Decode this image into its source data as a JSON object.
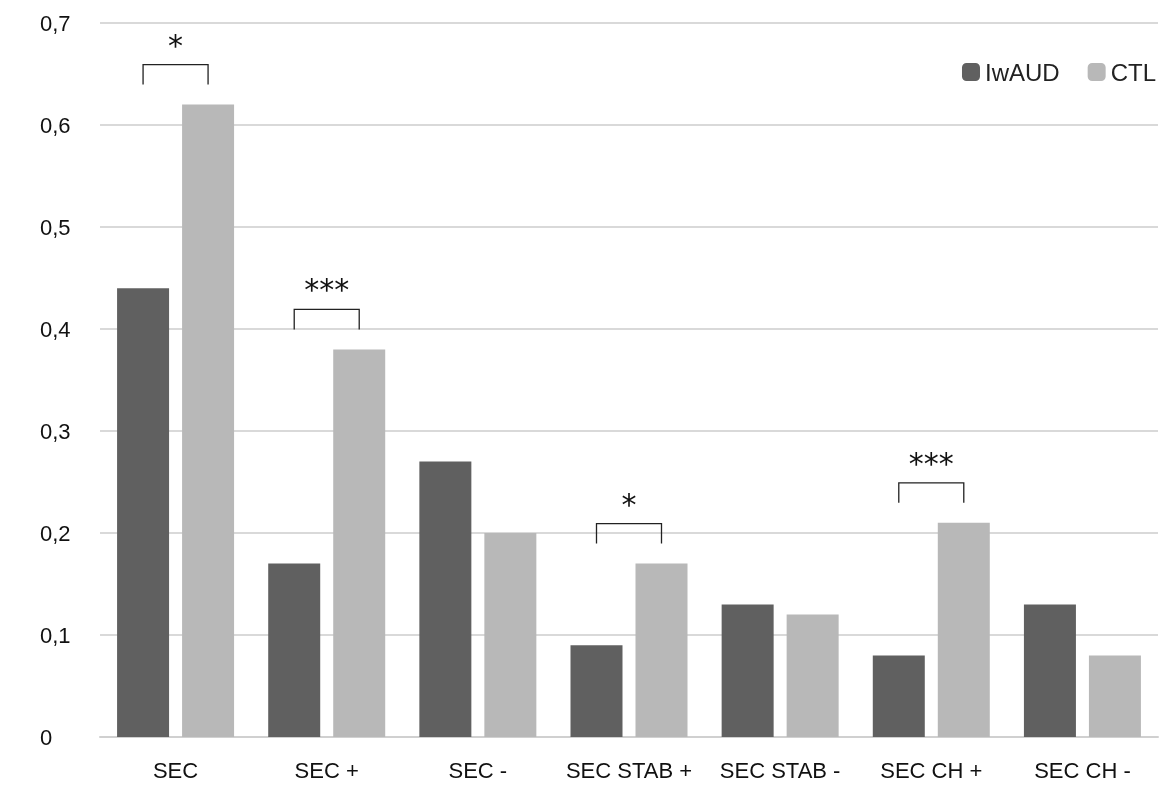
{
  "chart_data": {
    "type": "bar",
    "categories": [
      "SEC",
      "SEC +",
      "SEC -",
      "SEC STAB +",
      "SEC STAB -",
      "SEC CH +",
      "SEC CH -"
    ],
    "series": [
      {
        "name": "IwAUD",
        "color": "#606060",
        "values": [
          0.44,
          0.17,
          0.27,
          0.09,
          0.13,
          0.08,
          0.13
        ]
      },
      {
        "name": "CTL",
        "color": "#b8b8b8",
        "values": [
          0.62,
          0.38,
          0.2,
          0.17,
          0.12,
          0.21,
          0.08
        ]
      }
    ],
    "ylim": [
      0,
      0.7
    ],
    "yticks": [
      {
        "value": 0,
        "label": "0"
      },
      {
        "value": 0.1,
        "label": "0,1"
      },
      {
        "value": 0.2,
        "label": "0,2"
      },
      {
        "value": 0.3,
        "label": "0,3"
      },
      {
        "value": 0.4,
        "label": "0,4"
      },
      {
        "value": 0.5,
        "label": "0,5"
      },
      {
        "value": 0.6,
        "label": "0,6"
      },
      {
        "value": 0.7,
        "label": "0,7"
      }
    ],
    "grid": "y",
    "legend": "top right",
    "annotations": [
      "*",
      "***",
      "*",
      "***"
    ]
  }
}
